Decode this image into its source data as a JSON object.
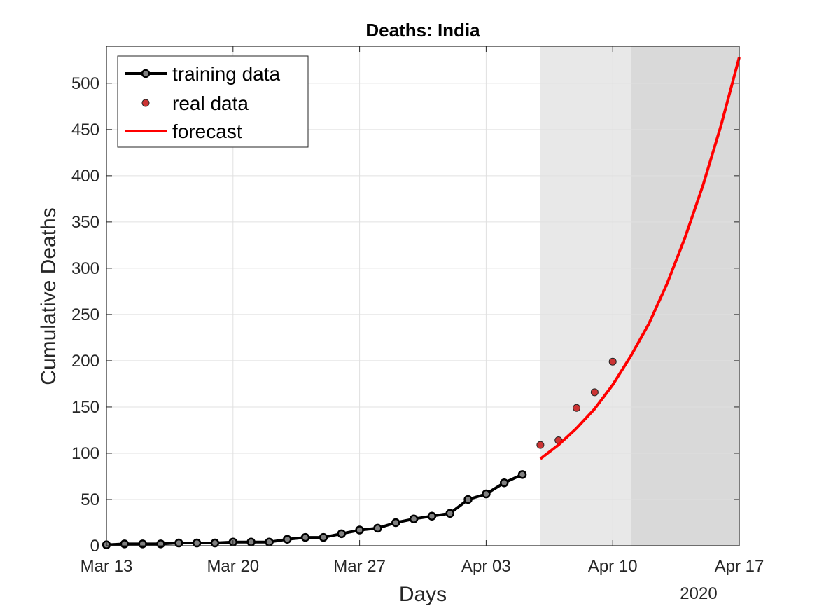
{
  "chart_data": {
    "type": "line",
    "title": "Deaths: India",
    "xlabel": "Days",
    "ylabel": "Cumulative Deaths",
    "x_year_label": "2020",
    "xlim": [
      "2020-03-13",
      "2020-04-17"
    ],
    "ylim": [
      0,
      540
    ],
    "grid": true,
    "legend_position": "top-left",
    "x_ticks": [
      {
        "date": "2020-03-13",
        "label": "Mar 13"
      },
      {
        "date": "2020-03-20",
        "label": "Mar 20"
      },
      {
        "date": "2020-03-27",
        "label": "Mar 27"
      },
      {
        "date": "2020-04-03",
        "label": "Apr 03"
      },
      {
        "date": "2020-04-10",
        "label": "Apr 10"
      },
      {
        "date": "2020-04-17",
        "label": "Apr 17"
      }
    ],
    "y_ticks": [
      0,
      50,
      100,
      150,
      200,
      250,
      300,
      350,
      400,
      450,
      500
    ],
    "shaded_regions": [
      {
        "start": "2020-04-06",
        "end": "2020-04-11",
        "color": "#e8e8e8"
      },
      {
        "start": "2020-04-11",
        "end": "2020-04-17",
        "color": "#d9d9d9"
      }
    ],
    "series": [
      {
        "name": "training data",
        "style": "line-marker",
        "color": "#000000",
        "marker_color": "#808080",
        "points": [
          {
            "x": "2020-03-13",
            "y": 1
          },
          {
            "x": "2020-03-14",
            "y": 2
          },
          {
            "x": "2020-03-15",
            "y": 2
          },
          {
            "x": "2020-03-16",
            "y": 2
          },
          {
            "x": "2020-03-17",
            "y": 3
          },
          {
            "x": "2020-03-18",
            "y": 3
          },
          {
            "x": "2020-03-19",
            "y": 3
          },
          {
            "x": "2020-03-20",
            "y": 4
          },
          {
            "x": "2020-03-21",
            "y": 4
          },
          {
            "x": "2020-03-22",
            "y": 4
          },
          {
            "x": "2020-03-23",
            "y": 7
          },
          {
            "x": "2020-03-24",
            "y": 9
          },
          {
            "x": "2020-03-25",
            "y": 9
          },
          {
            "x": "2020-03-26",
            "y": 13
          },
          {
            "x": "2020-03-27",
            "y": 17
          },
          {
            "x": "2020-03-28",
            "y": 19
          },
          {
            "x": "2020-03-29",
            "y": 25
          },
          {
            "x": "2020-03-30",
            "y": 29
          },
          {
            "x": "2020-03-31",
            "y": 32
          },
          {
            "x": "2020-04-01",
            "y": 35
          },
          {
            "x": "2020-04-02",
            "y": 50
          },
          {
            "x": "2020-04-03",
            "y": 56
          },
          {
            "x": "2020-04-04",
            "y": 68
          },
          {
            "x": "2020-04-05",
            "y": 77
          }
        ]
      },
      {
        "name": "real data",
        "style": "marker",
        "color": "#cc3333",
        "points": [
          {
            "x": "2020-04-06",
            "y": 109
          },
          {
            "x": "2020-04-07",
            "y": 114
          },
          {
            "x": "2020-04-08",
            "y": 149
          },
          {
            "x": "2020-04-09",
            "y": 166
          },
          {
            "x": "2020-04-10",
            "y": 199
          }
        ]
      },
      {
        "name": "forecast",
        "style": "line",
        "color": "#ff0000",
        "points": [
          {
            "x": "2020-04-06",
            "y": 94
          },
          {
            "x": "2020-04-07",
            "y": 109
          },
          {
            "x": "2020-04-08",
            "y": 127
          },
          {
            "x": "2020-04-09",
            "y": 148
          },
          {
            "x": "2020-04-10",
            "y": 174
          },
          {
            "x": "2020-04-11",
            "y": 205
          },
          {
            "x": "2020-04-12",
            "y": 240
          },
          {
            "x": "2020-04-13",
            "y": 283
          },
          {
            "x": "2020-04-14",
            "y": 333
          },
          {
            "x": "2020-04-15",
            "y": 390
          },
          {
            "x": "2020-04-16",
            "y": 455
          },
          {
            "x": "2020-04-17",
            "y": 528
          }
        ]
      }
    ]
  }
}
